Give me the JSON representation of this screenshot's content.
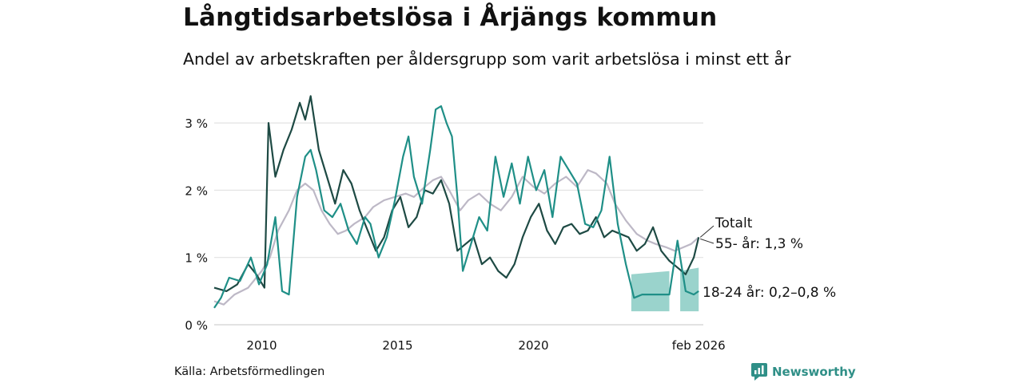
{
  "title": "Långtidsarbetslösa i Årjängs kommun",
  "subtitle": "Andel av arbetskraften per åldersgrupp som varit arbetslösa i minst ett år",
  "source": "Källa: Arbetsförmedlingen",
  "brand": "Newsworthy",
  "colors": {
    "total": "#bdb8c6",
    "age55": "#1e4a44",
    "age18": "#1f8f87",
    "band": "#88cbc3",
    "grid": "#e3e3e3"
  },
  "chart_data": {
    "type": "line",
    "ylim": [
      0,
      3.5
    ],
    "yticks": [
      0,
      1,
      2,
      3
    ],
    "ytick_labels": [
      "0 %",
      "1 %",
      "2 %",
      "3 %"
    ],
    "xlim": [
      2008.25,
      2026.25
    ],
    "xticks": [
      2010,
      2015,
      2020,
      2026.08
    ],
    "xtick_labels": [
      "2010",
      "2015",
      "2020",
      "feb 2026"
    ],
    "series": [
      {
        "name": "Totalt",
        "label": "Totalt",
        "x": [
          2008.25,
          2008.6,
          2009.0,
          2009.5,
          2010.0,
          2010.3,
          2010.6,
          2011.0,
          2011.3,
          2011.6,
          2011.9,
          2012.2,
          2012.5,
          2012.8,
          2013.1,
          2013.4,
          2013.8,
          2014.1,
          2014.5,
          2014.9,
          2015.3,
          2015.6,
          2016.0,
          2016.3,
          2016.6,
          2016.9,
          2017.3,
          2017.6,
          2018.0,
          2018.4,
          2018.8,
          2019.2,
          2019.6,
          2020.0,
          2020.4,
          2020.8,
          2021.2,
          2021.6,
          2022.0,
          2022.3,
          2022.7,
          2023.0,
          2023.4,
          2023.8,
          2024.2,
          2024.5,
          2024.9,
          2025.2,
          2025.5,
          2025.8,
          2026.08
        ],
        "values": [
          0.35,
          0.3,
          0.45,
          0.55,
          0.8,
          1.0,
          1.4,
          1.7,
          2.0,
          2.1,
          2.0,
          1.7,
          1.5,
          1.35,
          1.4,
          1.5,
          1.6,
          1.75,
          1.85,
          1.9,
          1.95,
          1.9,
          2.05,
          2.15,
          2.2,
          2.0,
          1.7,
          1.85,
          1.95,
          1.8,
          1.7,
          1.9,
          2.2,
          2.05,
          1.95,
          2.1,
          2.2,
          2.05,
          2.3,
          2.25,
          2.1,
          1.8,
          1.55,
          1.35,
          1.25,
          1.2,
          1.15,
          1.1,
          1.15,
          1.2,
          1.3
        ]
      },
      {
        "name": "55- år",
        "label": "55- år: 1,3 %",
        "x": [
          2008.25,
          2008.7,
          2009.1,
          2009.5,
          2009.8,
          2010.1,
          2010.25,
          2010.5,
          2010.8,
          2011.1,
          2011.4,
          2011.6,
          2011.8,
          2012.1,
          2012.4,
          2012.7,
          2013.0,
          2013.3,
          2013.6,
          2013.9,
          2014.2,
          2014.5,
          2014.8,
          2015.1,
          2015.4,
          2015.7,
          2016.0,
          2016.3,
          2016.6,
          2016.9,
          2017.2,
          2017.5,
          2017.8,
          2018.1,
          2018.4,
          2018.7,
          2019.0,
          2019.3,
          2019.6,
          2019.9,
          2020.2,
          2020.5,
          2020.8,
          2021.1,
          2021.4,
          2021.7,
          2022.0,
          2022.3,
          2022.6,
          2022.9,
          2023.2,
          2023.5,
          2023.8,
          2024.1,
          2024.4,
          2024.7,
          2025.0,
          2025.3,
          2025.6,
          2025.9,
          2026.08
        ],
        "values": [
          0.55,
          0.5,
          0.6,
          0.9,
          0.75,
          0.55,
          3.0,
          2.2,
          2.6,
          2.9,
          3.3,
          3.05,
          3.4,
          2.6,
          2.2,
          1.8,
          2.3,
          2.1,
          1.7,
          1.4,
          1.1,
          1.3,
          1.7,
          1.9,
          1.45,
          1.6,
          2.0,
          1.95,
          2.15,
          1.8,
          1.1,
          1.2,
          1.3,
          0.9,
          1.0,
          0.8,
          0.7,
          0.9,
          1.3,
          1.6,
          1.8,
          1.4,
          1.2,
          1.45,
          1.5,
          1.35,
          1.4,
          1.6,
          1.3,
          1.4,
          1.35,
          1.3,
          1.1,
          1.2,
          1.45,
          1.1,
          0.95,
          0.85,
          0.75,
          1.0,
          1.3
        ]
      },
      {
        "name": "18-24 år",
        "label": "18-24 år: 0,2–0,8 %",
        "x": [
          2008.25,
          2008.5,
          2008.8,
          2009.2,
          2009.6,
          2009.9,
          2010.2,
          2010.5,
          2010.75,
          2011.0,
          2011.3,
          2011.6,
          2011.8,
          2012.0,
          2012.3,
          2012.6,
          2012.9,
          2013.2,
          2013.5,
          2013.8,
          2014.0,
          2014.3,
          2014.6,
          2014.9,
          2015.2,
          2015.4,
          2015.6,
          2015.9,
          2016.2,
          2016.4,
          2016.6,
          2016.8,
          2017.0,
          2017.2,
          2017.4,
          2017.7,
          2018.0,
          2018.3,
          2018.6,
          2018.9,
          2019.2,
          2019.5,
          2019.8,
          2020.1,
          2020.4,
          2020.7,
          2021.0,
          2021.3,
          2021.6,
          2021.9,
          2022.2,
          2022.5,
          2022.8,
          2023.1,
          2023.4,
          2023.7,
          2024.0,
          2024.3,
          2024.5,
          2024.7,
          2025.0,
          2025.3,
          2025.6,
          2025.9,
          2026.08
        ],
        "values": [
          0.25,
          0.4,
          0.7,
          0.65,
          1.0,
          0.6,
          0.9,
          1.6,
          0.5,
          0.45,
          1.9,
          2.5,
          2.6,
          2.3,
          1.7,
          1.6,
          1.8,
          1.4,
          1.2,
          1.6,
          1.5,
          1.0,
          1.3,
          1.85,
          2.5,
          2.8,
          2.2,
          1.8,
          2.6,
          3.2,
          3.25,
          3.0,
          2.8,
          1.9,
          0.8,
          1.2,
          1.6,
          1.4,
          2.5,
          1.9,
          2.4,
          1.8,
          2.5,
          2.0,
          2.3,
          1.6,
          2.5,
          2.3,
          2.1,
          1.5,
          1.45,
          1.7,
          2.5,
          1.5,
          0.9,
          0.4,
          0.45,
          0.45,
          0.45,
          0.45,
          0.45,
          1.25,
          0.5,
          0.45,
          0.5
        ]
      }
    ],
    "uncertainty_band": {
      "series": "18-24 år",
      "segments": [
        {
          "x": [
            2023.6,
            2025.0
          ],
          "low": 0.2,
          "high": 0.75
        },
        {
          "x": [
            2025.4,
            2026.08
          ],
          "low": 0.2,
          "high": 0.8
        }
      ]
    }
  }
}
